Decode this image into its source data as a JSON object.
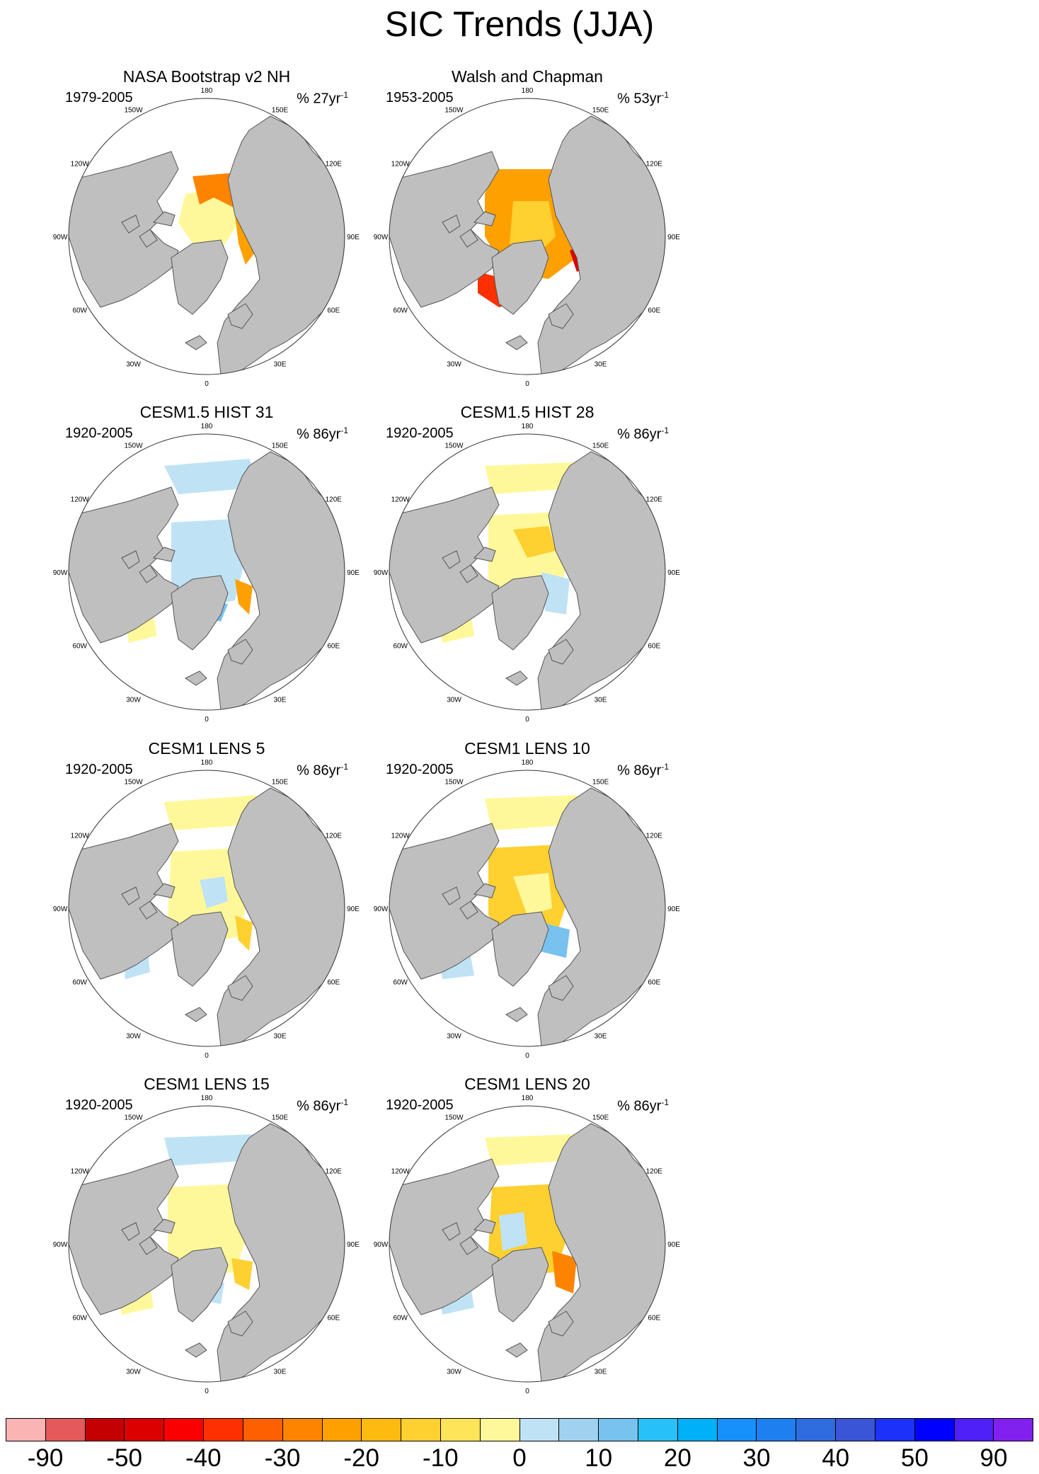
{
  "title": "SIC Trends (JJA)",
  "lon_labels": [
    "180",
    "150E",
    "120E",
    "90E",
    "60E",
    "30E",
    "0",
    "30W",
    "60W",
    "90W",
    "120W",
    "150W"
  ],
  "panels": [
    {
      "title": "NASA Bootstrap v2 NH",
      "period": "1979-2005",
      "units": "% 27yr",
      "exponent": "-1",
      "pattern": "obs-nasa"
    },
    {
      "title": "Walsh and Chapman",
      "period": "1953-2005",
      "units": "% 53yr",
      "exponent": "-1",
      "pattern": "obs-walsh"
    },
    {
      "title": "CESM1.5 HIST 31",
      "period": "1920-2005",
      "units": "% 86yr",
      "exponent": "-1",
      "pattern": "hist31"
    },
    {
      "title": "CESM1.5 HIST 28",
      "period": "1920-2005",
      "units": "% 86yr",
      "exponent": "-1",
      "pattern": "hist28"
    },
    {
      "title": "CESM1 LENS 5",
      "period": "1920-2005",
      "units": "% 86yr",
      "exponent": "-1",
      "pattern": "lens5"
    },
    {
      "title": "CESM1 LENS 10",
      "period": "1920-2005",
      "units": "% 86yr",
      "exponent": "-1",
      "pattern": "lens10"
    },
    {
      "title": "CESM1 LENS 15",
      "period": "1920-2005",
      "units": "% 86yr",
      "exponent": "-1",
      "pattern": "lens15"
    },
    {
      "title": "CESM1 LENS 20",
      "period": "1920-2005",
      "units": "% 86yr",
      "exponent": "-1",
      "pattern": "lens20"
    }
  ],
  "colorbar": {
    "colors": [
      "#fbb4b4",
      "#e45a5a",
      "#c40000",
      "#dc0000",
      "#fa0000",
      "#fe3000",
      "#fe6000",
      "#fe8400",
      "#fea000",
      "#feba10",
      "#fed030",
      "#fee458",
      "#fff89a",
      "#bfe3f5",
      "#a0d2f0",
      "#78c2f0",
      "#28c0f8",
      "#00b0f8",
      "#1890fc",
      "#1e80f0",
      "#2f6ce0",
      "#3a56d6",
      "#1c32f8",
      "#0000fe",
      "#5020f8",
      "#8220f0"
    ],
    "tick_labels": [
      "-90",
      "-50",
      "-40",
      "-30",
      "-20",
      "-10",
      "0",
      "10",
      "20",
      "30",
      "40",
      "50",
      "90"
    ]
  },
  "colors": {
    "land": "#bfbfbf",
    "ocean": "#ffffff",
    "coast": "#555555"
  }
}
